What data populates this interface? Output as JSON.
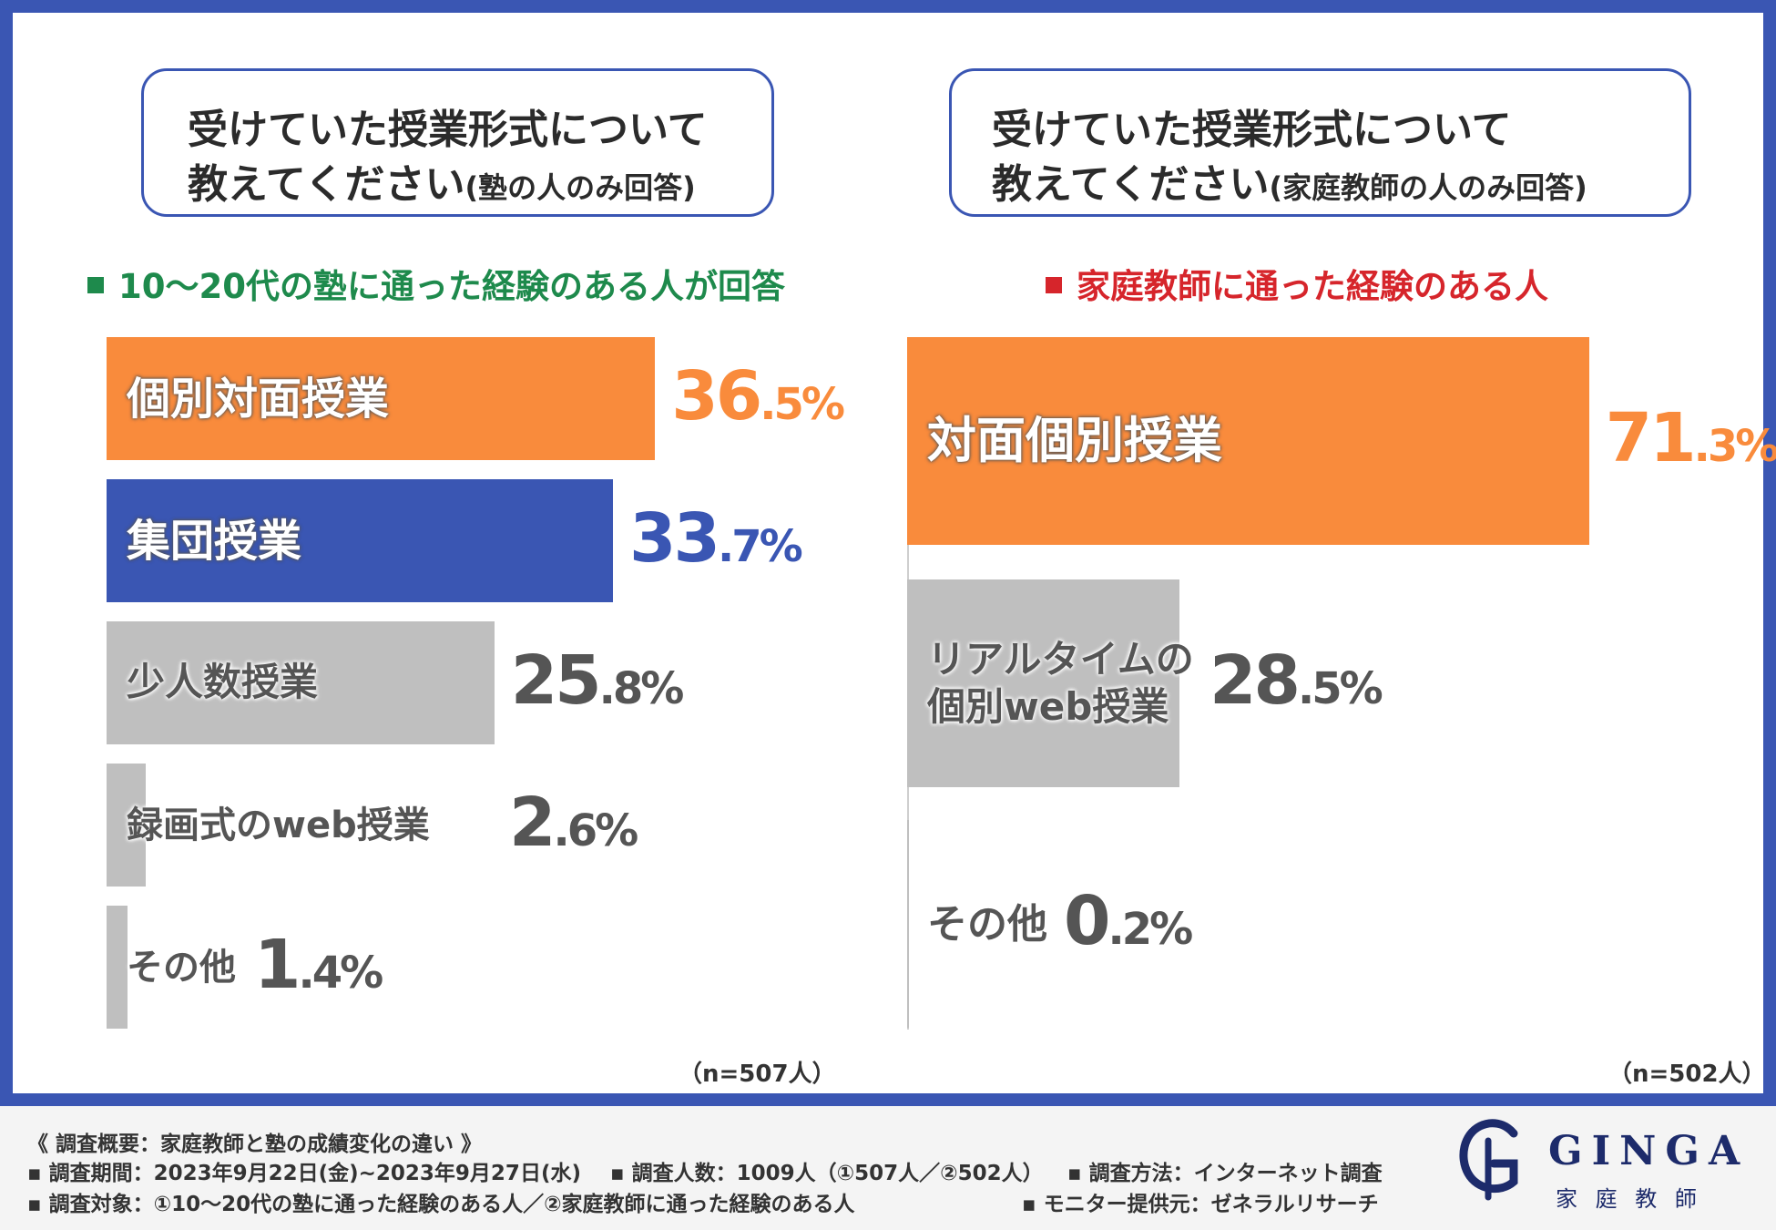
{
  "colors": {
    "frame": "#3a56b3",
    "orange": "#f98b3c",
    "blue": "#3a56b3",
    "gray": "#bfbfbf",
    "green": "#1e8a4c",
    "red": "#d6252b",
    "gray_text": "#555555"
  },
  "left": {
    "title_line1": "受けていた授業形式について",
    "title_line2_main": "教えてください",
    "title_line2_sub": "(塾の人のみ回答)",
    "subhead": "10〜20代の塾に通った経験のある人が回答",
    "n_label": "（n=507人）"
  },
  "right": {
    "title_line1": "受けていた授業形式について",
    "title_line2_main": "教えてください",
    "title_line2_sub": "(家庭教師の人のみ回答)",
    "subhead": "家庭教師に通った経験のある人",
    "n_label": "（n=502人）"
  },
  "chart_data": [
    {
      "type": "bar",
      "orientation": "horizontal",
      "categories": [
        "個別対面授業",
        "集団授業",
        "少人数授業",
        "録画式のweb授業",
        "その他"
      ],
      "values": [
        36.5,
        33.7,
        25.8,
        2.6,
        1.4
      ],
      "value_labels": [
        {
          "int": "36",
          "dec": ".5%"
        },
        {
          "int": "33",
          "dec": ".7%"
        },
        {
          "int": "25",
          "dec": ".8%"
        },
        {
          "int": "2",
          "dec": ".6%"
        },
        {
          "int": "1",
          "dec": ".4%"
        }
      ],
      "bar_colors": [
        "#f98b3c",
        "#3a56b3",
        "#bfbfbf",
        "#bfbfbf",
        "#bfbfbf"
      ],
      "value_colors": [
        "#f98b3c",
        "#3a56b3",
        "#555555",
        "#555555",
        "#555555"
      ],
      "unit": "%"
    },
    {
      "type": "bar",
      "orientation": "horizontal",
      "categories": [
        "対面個別授業",
        "リアルタイムの\n個別web授業",
        "その他"
      ],
      "values": [
        71.3,
        28.5,
        0.2
      ],
      "value_labels": [
        {
          "int": "71",
          "dec": ".3%"
        },
        {
          "int": "28",
          "dec": ".5%"
        },
        {
          "int": "0",
          "dec": ".2%"
        }
      ],
      "bar_colors": [
        "#f98b3c",
        "#bfbfbf",
        "#bfbfbf"
      ],
      "value_colors": [
        "#f98b3c",
        "#555555",
        "#555555"
      ],
      "unit": "%"
    }
  ],
  "footer": {
    "line1": "《 調査概要：家庭教師と塾の成績変化の違い 》",
    "line2a": "▪ 調査期間：2023年9月22日(金)~2023年9月27日(水)",
    "line2b": "▪ 調査人数：1009人（①507人／②502人）",
    "line2c": "▪ 調査方法：インターネット調査",
    "line3a": "▪ 調査対象：①10〜20代の塾に通った経験のある人／②家庭教師に通った経験のある人",
    "line3b": "▪ モニター提供元：ゼネラルリサーチ"
  },
  "logo": {
    "brand": "GINGA",
    "sub": "家 庭 教 師"
  }
}
